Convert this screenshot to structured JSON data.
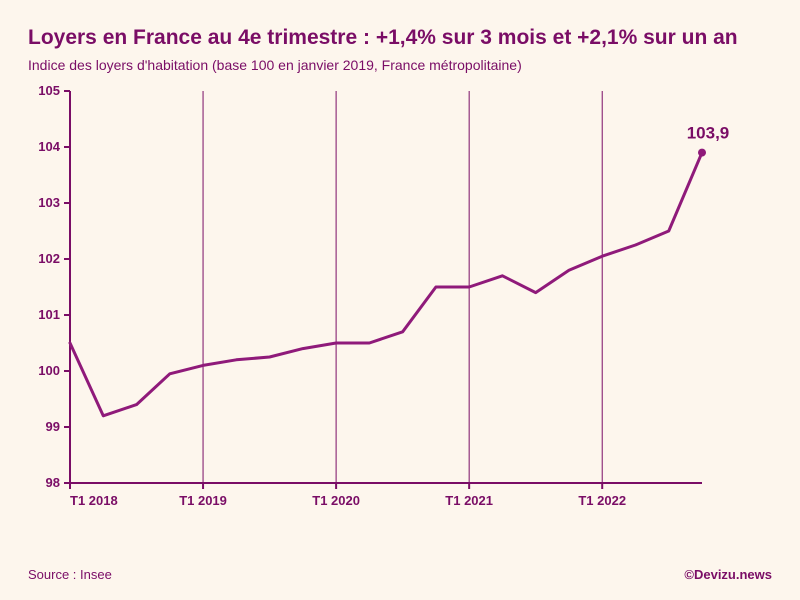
{
  "title": "Loyers en France au 4e trimestre : +1,4% sur 3 mois et +2,1% sur un an",
  "subtitle": "Indice des loyers d'habitation (base 100 en janvier 2019, France métropolitaine)",
  "source": "Source : Insee",
  "credit": "©Devizu.news",
  "chart": {
    "type": "line",
    "background_color": "#fdf6ed",
    "text_color": "#7a0d66",
    "line_color": "#8f1a7a",
    "line_width": 3,
    "axis_color": "#7a0d66",
    "axis_width": 2,
    "grid_vertical_color": "#7a0d66",
    "grid_vertical_width": 1,
    "title_fontsize": 21,
    "subtitle_fontsize": 14,
    "axis_label_fontsize": 13,
    "end_label_fontsize": 17,
    "source_fontsize": 13,
    "ylim": [
      98,
      105
    ],
    "ytick_step": 1,
    "yticks": [
      98,
      99,
      100,
      101,
      102,
      103,
      104,
      105
    ],
    "x_categories": [
      "T1 2018",
      "T1 2019",
      "T1 2020",
      "T1 2021",
      "T1 2022"
    ],
    "x_category_indices": [
      0,
      4,
      8,
      12,
      16
    ],
    "n_points": 20,
    "values": [
      100.5,
      99.2,
      99.4,
      99.95,
      100.1,
      100.2,
      100.25,
      100.4,
      100.5,
      100.5,
      100.7,
      101.5,
      101.5,
      101.7,
      101.4,
      101.8,
      102.05,
      102.25,
      102.5,
      103.9
    ],
    "end_label": "103,9",
    "end_marker_radius": 4
  }
}
